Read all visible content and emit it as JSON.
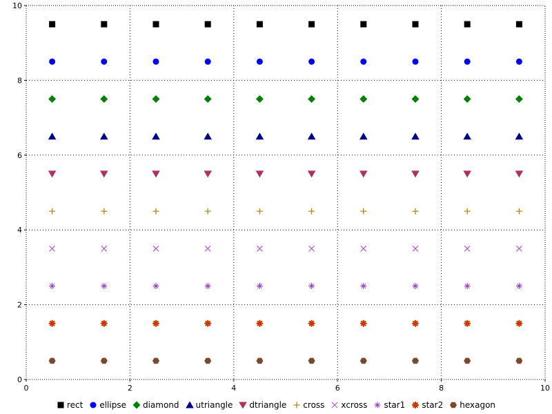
{
  "chart_data": {
    "type": "scatter",
    "title": "",
    "xlabel": "",
    "ylabel": "",
    "x": [
      0.5,
      1.5,
      2.5,
      3.5,
      4.5,
      5.5,
      6.5,
      7.5,
      8.5,
      9.5
    ],
    "series": [
      {
        "name": "rect",
        "marker": "rect",
        "color": "#000000",
        "y": 9.5
      },
      {
        "name": "ellipse",
        "marker": "ellipse",
        "color": "#0000ff",
        "y": 8.5
      },
      {
        "name": "diamond",
        "marker": "diamond",
        "color": "#008000",
        "y": 7.5
      },
      {
        "name": "utriangle",
        "marker": "utriangle",
        "color": "#00008b",
        "y": 6.5
      },
      {
        "name": "dtriangle",
        "marker": "dtriangle",
        "color": "#b03060",
        "y": 5.5
      },
      {
        "name": "cross",
        "marker": "cross",
        "color": "#b8860b",
        "y": 4.5
      },
      {
        "name": "xcross",
        "marker": "xcross",
        "color": "#ba55d3",
        "y": 3.5
      },
      {
        "name": "star1",
        "marker": "star1",
        "color": "#9932cc",
        "y": 2.5
      },
      {
        "name": "star2",
        "marker": "star2",
        "color": "#cc3700",
        "y": 1.5
      },
      {
        "name": "hexagon",
        "marker": "hexagon",
        "color": "#7b4a2d",
        "y": 0.5
      }
    ],
    "xlim": [
      0,
      10
    ],
    "ylim": [
      0,
      10
    ],
    "x_ticks": [
      0,
      2,
      4,
      6,
      8,
      10
    ],
    "y_ticks": [
      0,
      2,
      4,
      6,
      8,
      10
    ],
    "grid": true,
    "grid_style": "dotted",
    "legend_position": "bottom",
    "background": "#ffffff",
    "axis_color": "#000000"
  }
}
